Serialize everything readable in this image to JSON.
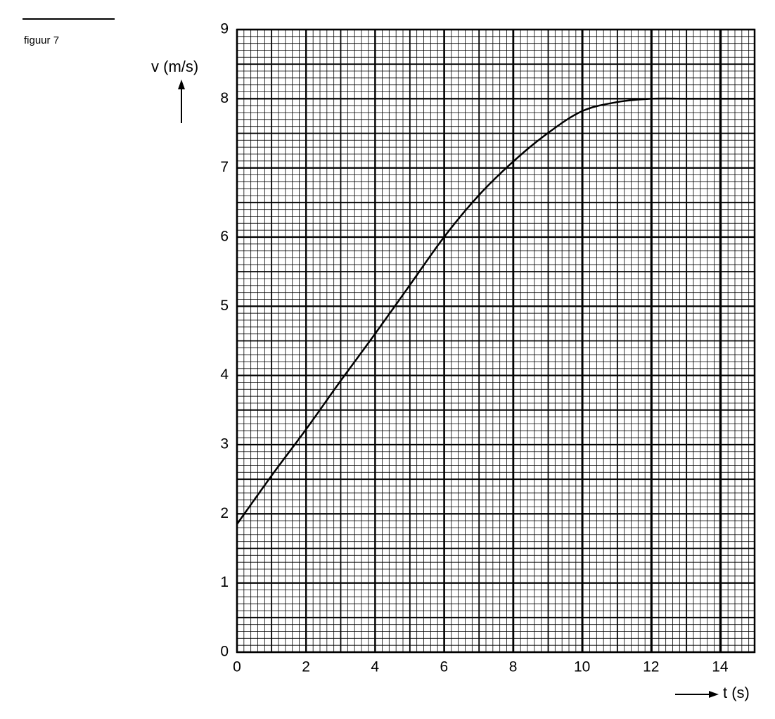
{
  "caption": "figuur 7",
  "chart_data": {
    "type": "line",
    "y_label": "v (m/s)",
    "x_label": "t (s)",
    "x": [
      0,
      1,
      2,
      3,
      4,
      5,
      6,
      7,
      8,
      9,
      10,
      11,
      12,
      13,
      14,
      15
    ],
    "series": [
      {
        "color": "#000000",
        "values": [
          1.85,
          2.55,
          3.22,
          3.92,
          4.6,
          5.3,
          6.0,
          6.6,
          7.09,
          7.5,
          7.82,
          7.95,
          8.0,
          8.0,
          8.0,
          8.0
        ]
      }
    ],
    "xlim": [
      0,
      15
    ],
    "ylim": [
      0,
      9
    ],
    "xticks": [
      0,
      2,
      4,
      6,
      8,
      10,
      12,
      14
    ],
    "yticks": [
      0,
      1,
      2,
      3,
      4,
      5,
      6,
      7,
      8,
      9
    ],
    "grid": true
  }
}
